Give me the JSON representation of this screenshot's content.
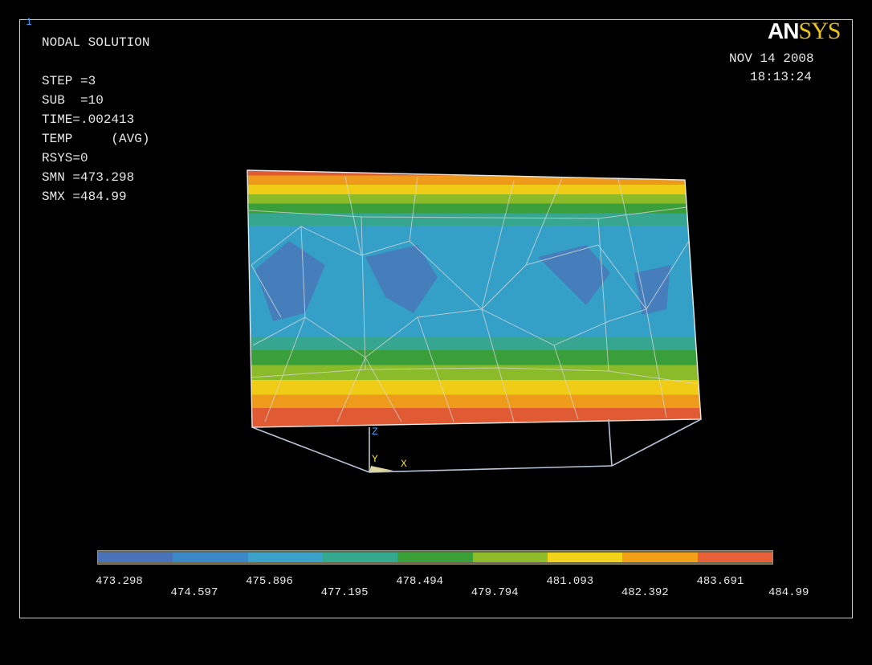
{
  "window_number": "1",
  "title": "NODAL SOLUTION",
  "info": {
    "step": "STEP =3",
    "sub": "SUB  =10",
    "time": "TIME=.002413",
    "temp": "TEMP     (AVG)",
    "rsys": "RSYS=0",
    "smn": "SMN =473.298",
    "smx": "SMX =484.99"
  },
  "logo": {
    "part1": "AN",
    "part2": "SYS"
  },
  "date": "NOV 14 2008",
  "time_of_day": "18:13:24",
  "axes": {
    "z": "Z",
    "y": "Y",
    "x": "X"
  },
  "colors": {
    "axis_z": "#3fa4ff",
    "axis_y": "#f0e030",
    "axis_x": "#f0e030",
    "bands": [
      "#4a72b8",
      "#3a88c8",
      "#3aa2c8",
      "#35a890",
      "#3aa038",
      "#8ebc2a",
      "#f2d21a",
      "#f2a018",
      "#e8603a"
    ]
  },
  "legend": {
    "values": [
      "473.298",
      "474.597",
      "475.896",
      "477.195",
      "478.494",
      "479.794",
      "481.093",
      "482.392",
      "483.691",
      "484.99"
    ]
  }
}
